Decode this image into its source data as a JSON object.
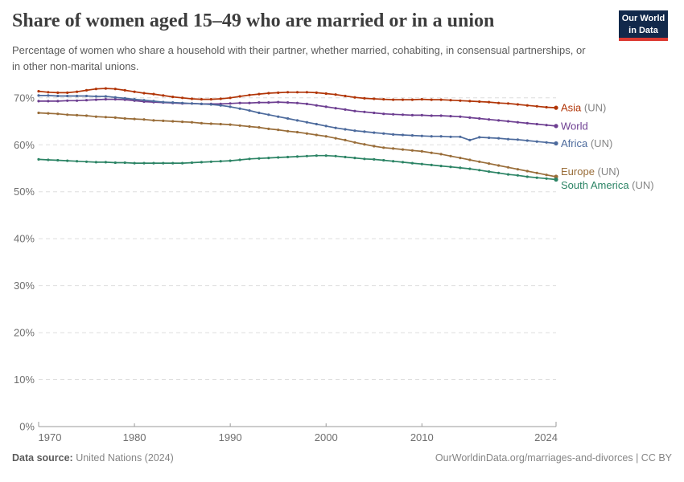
{
  "header": {
    "title": "Share of women aged 15–49 who are married or in a union",
    "subtitle": "Percentage of women who share a household with their partner, whether married, cohabiting, in consensual partnerships, or in other non-marital unions."
  },
  "logo": {
    "line1": "Our World",
    "line2": "in Data",
    "bg_color": "#12294B",
    "accent_color": "#DC3A32"
  },
  "footer": {
    "source_label": "Data source:",
    "source_value": " United Nations (2024)",
    "attribution": "OurWorldinData.org/marriages-and-divorces | CC BY"
  },
  "chart_data": {
    "type": "line",
    "title": "Share of women aged 15–49 who are married or in a union",
    "xlabel": "",
    "ylabel": "",
    "xlim": [
      1970,
      2024
    ],
    "ylim": [
      0,
      75
    ],
    "grid": "horizontal-dashed",
    "legend_position": "right-of-line-ends",
    "xtick_values": [
      1970,
      1980,
      1990,
      2000,
      2010,
      2024
    ],
    "ytick_values": [
      0,
      10,
      20,
      30,
      40,
      50,
      60,
      70
    ],
    "ytick_suffix": "%",
    "x": [
      1970,
      1971,
      1972,
      1973,
      1974,
      1975,
      1976,
      1977,
      1978,
      1979,
      1980,
      1981,
      1982,
      1983,
      1984,
      1985,
      1986,
      1987,
      1988,
      1989,
      1990,
      1991,
      1992,
      1993,
      1994,
      1995,
      1996,
      1997,
      1998,
      1999,
      2000,
      2001,
      2002,
      2003,
      2004,
      2005,
      2006,
      2007,
      2008,
      2009,
      2010,
      2011,
      2012,
      2013,
      2014,
      2015,
      2016,
      2017,
      2018,
      2019,
      2020,
      2021,
      2022,
      2023,
      2024
    ],
    "series": [
      {
        "name": "Asia",
        "suffix": " (UN)",
        "color": "#B13507",
        "values": [
          71.4,
          71.2,
          71.1,
          71.1,
          71.3,
          71.6,
          71.9,
          72.0,
          71.9,
          71.6,
          71.3,
          71.0,
          70.8,
          70.5,
          70.2,
          70.0,
          69.8,
          69.7,
          69.7,
          69.8,
          70.0,
          70.3,
          70.6,
          70.8,
          71.0,
          71.1,
          71.2,
          71.2,
          71.2,
          71.1,
          70.9,
          70.7,
          70.4,
          70.1,
          69.9,
          69.8,
          69.7,
          69.6,
          69.6,
          69.6,
          69.7,
          69.6,
          69.6,
          69.5,
          69.4,
          69.3,
          69.2,
          69.1,
          68.9,
          68.8,
          68.6,
          68.4,
          68.2,
          68.0,
          67.9
        ]
      },
      {
        "name": "World",
        "suffix": "",
        "color": "#6D3E91",
        "values": [
          69.3,
          69.3,
          69.3,
          69.4,
          69.4,
          69.5,
          69.6,
          69.7,
          69.7,
          69.6,
          69.4,
          69.2,
          69.1,
          69.0,
          68.9,
          68.8,
          68.8,
          68.7,
          68.7,
          68.7,
          68.8,
          68.9,
          68.9,
          69.0,
          69.0,
          69.1,
          69.0,
          68.9,
          68.7,
          68.4,
          68.1,
          67.8,
          67.5,
          67.2,
          67.0,
          66.8,
          66.6,
          66.5,
          66.4,
          66.3,
          66.3,
          66.2,
          66.2,
          66.1,
          66.0,
          65.8,
          65.6,
          65.4,
          65.2,
          65.0,
          64.8,
          64.6,
          64.4,
          64.2,
          64.0
        ]
      },
      {
        "name": "Africa",
        "suffix": " (UN)",
        "color": "#4C6A9C",
        "values": [
          70.5,
          70.5,
          70.4,
          70.4,
          70.4,
          70.4,
          70.3,
          70.3,
          70.1,
          69.9,
          69.7,
          69.5,
          69.3,
          69.1,
          69.0,
          68.9,
          68.8,
          68.7,
          68.6,
          68.4,
          68.1,
          67.7,
          67.3,
          66.8,
          66.4,
          66.0,
          65.6,
          65.2,
          64.8,
          64.4,
          64.0,
          63.6,
          63.3,
          63.0,
          62.8,
          62.6,
          62.4,
          62.2,
          62.1,
          62.0,
          61.9,
          61.8,
          61.8,
          61.7,
          61.7,
          61.0,
          61.6,
          61.5,
          61.4,
          61.2,
          61.1,
          60.9,
          60.7,
          60.5,
          60.3
        ]
      },
      {
        "name": "Europe",
        "suffix": " (UN)",
        "color": "#996D39",
        "values": [
          66.8,
          66.7,
          66.6,
          66.4,
          66.3,
          66.2,
          66.0,
          65.9,
          65.8,
          65.6,
          65.5,
          65.4,
          65.2,
          65.1,
          65.0,
          64.9,
          64.8,
          64.6,
          64.5,
          64.4,
          64.3,
          64.1,
          63.9,
          63.7,
          63.4,
          63.2,
          62.9,
          62.7,
          62.4,
          62.1,
          61.8,
          61.4,
          61.0,
          60.5,
          60.1,
          59.7,
          59.4,
          59.2,
          59.0,
          58.8,
          58.6,
          58.3,
          58.0,
          57.6,
          57.2,
          56.8,
          56.4,
          56.0,
          55.6,
          55.2,
          54.8,
          54.4,
          54.0,
          53.6,
          53.2
        ]
      },
      {
        "name": "South America",
        "suffix": " (UN)",
        "color": "#2C8465",
        "values": [
          56.9,
          56.8,
          56.7,
          56.6,
          56.5,
          56.4,
          56.3,
          56.3,
          56.2,
          56.2,
          56.1,
          56.1,
          56.1,
          56.1,
          56.1,
          56.1,
          56.2,
          56.3,
          56.4,
          56.5,
          56.6,
          56.8,
          57.0,
          57.1,
          57.2,
          57.3,
          57.4,
          57.5,
          57.6,
          57.7,
          57.7,
          57.6,
          57.4,
          57.2,
          57.0,
          56.9,
          56.7,
          56.5,
          56.3,
          56.1,
          55.9,
          55.7,
          55.5,
          55.3,
          55.1,
          54.9,
          54.6,
          54.3,
          54.0,
          53.7,
          53.5,
          53.2,
          53.0,
          52.8,
          52.6
        ]
      }
    ]
  },
  "colors": {
    "grid": "#dedede",
    "axis": "#9a9a9a",
    "tick_label": "#6f6f6f",
    "legend_suffix": "#858585"
  }
}
